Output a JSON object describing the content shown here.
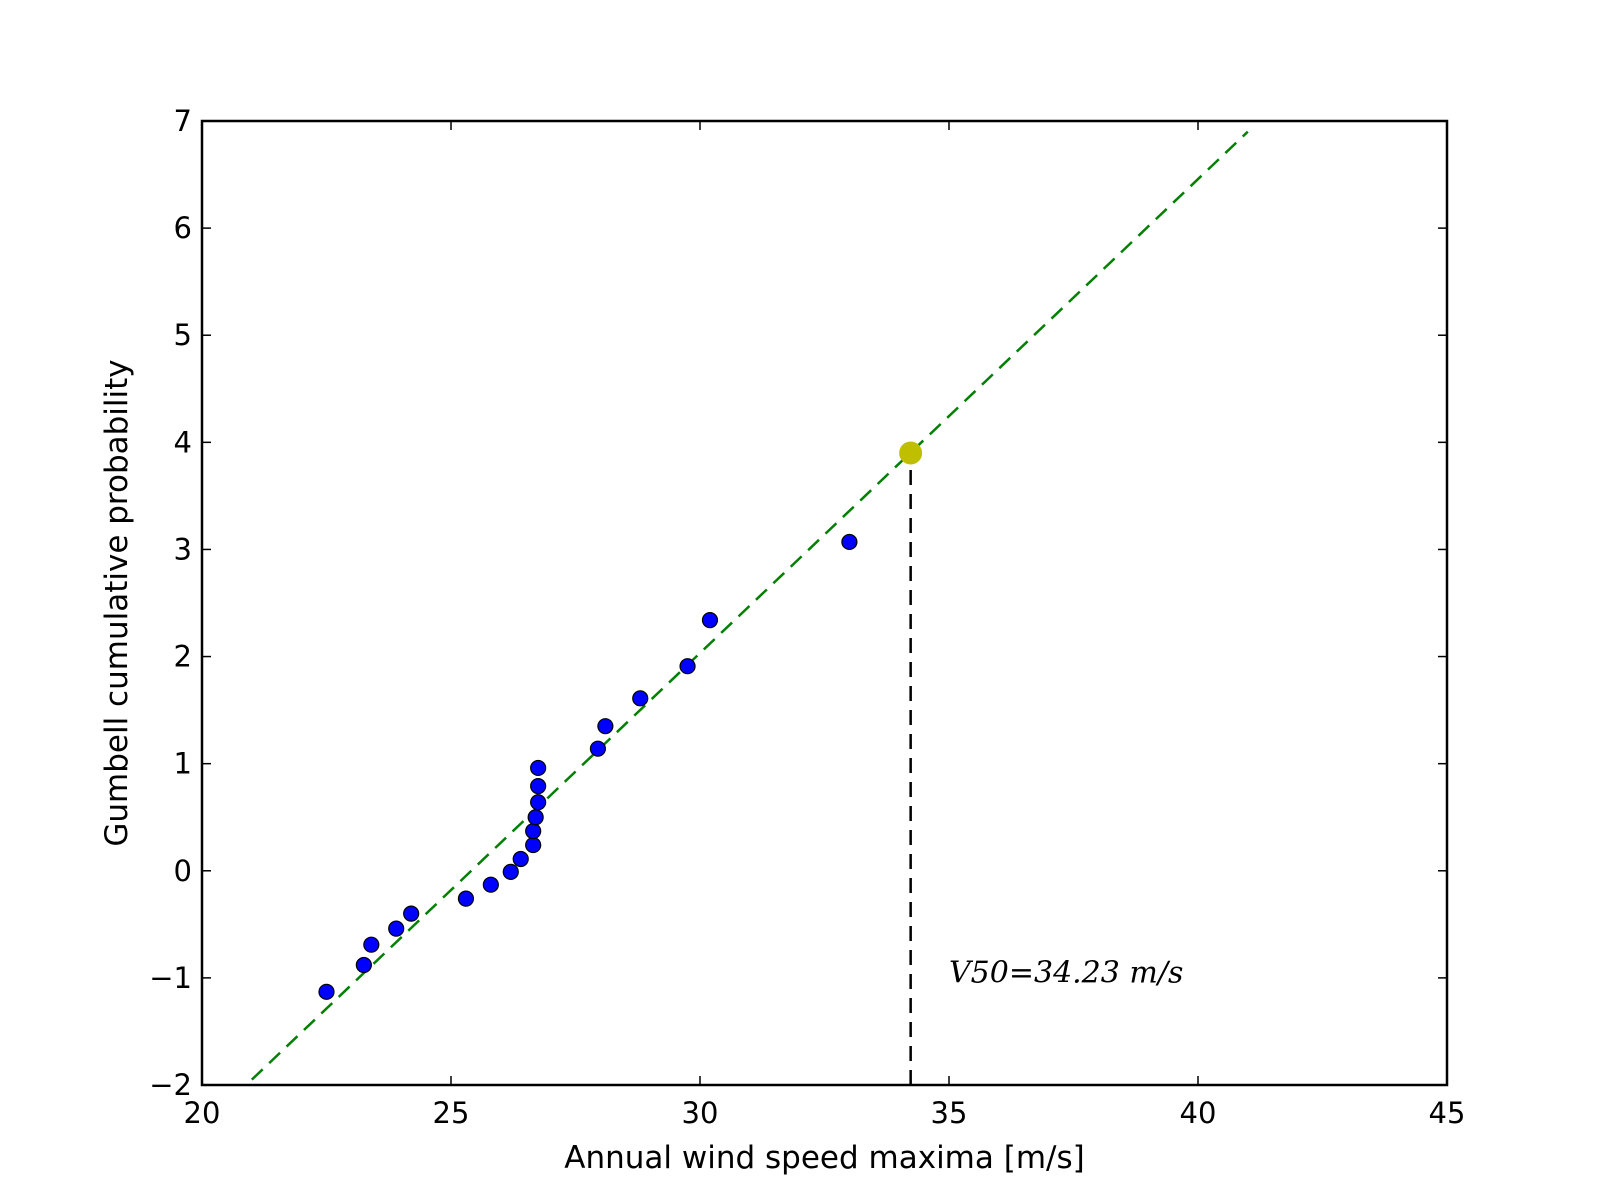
{
  "chart_data": {
    "type": "scatter",
    "title": "",
    "xlabel": "Annual wind speed maxima [m/s]",
    "ylabel": "Gumbell cumulative probability",
    "xlim": [
      20,
      45
    ],
    "ylim": [
      -2,
      7
    ],
    "xticks": [
      20,
      25,
      30,
      35,
      40,
      45
    ],
    "yticks": [
      -2,
      -1,
      0,
      1,
      2,
      3,
      4,
      5,
      6,
      7
    ],
    "xtick_labels": [
      "20",
      "25",
      "30",
      "35",
      "40",
      "45"
    ],
    "ytick_labels": [
      "−2",
      "−1",
      "0",
      "1",
      "2",
      "3",
      "4",
      "5",
      "6",
      "7"
    ],
    "grid": false,
    "legend": "none",
    "series": [
      {
        "kind": "scatter",
        "color": "#0000ff",
        "points": [
          {
            "x": 22.5,
            "y": -1.13
          },
          {
            "x": 23.25,
            "y": -0.88
          },
          {
            "x": 23.4,
            "y": -0.69
          },
          {
            "x": 23.9,
            "y": -0.54
          },
          {
            "x": 24.2,
            "y": -0.4
          },
          {
            "x": 25.3,
            "y": -0.26
          },
          {
            "x": 25.8,
            "y": -0.13
          },
          {
            "x": 26.2,
            "y": -0.01
          },
          {
            "x": 26.4,
            "y": 0.11
          },
          {
            "x": 26.65,
            "y": 0.24
          },
          {
            "x": 26.65,
            "y": 0.37
          },
          {
            "x": 26.7,
            "y": 0.5
          },
          {
            "x": 26.75,
            "y": 0.64
          },
          {
            "x": 26.75,
            "y": 0.79
          },
          {
            "x": 26.75,
            "y": 0.96
          },
          {
            "x": 27.95,
            "y": 1.14
          },
          {
            "x": 28.1,
            "y": 1.35
          },
          {
            "x": 28.8,
            "y": 1.61
          },
          {
            "x": 29.75,
            "y": 1.91
          },
          {
            "x": 30.2,
            "y": 2.34
          },
          {
            "x": 33.0,
            "y": 3.07
          }
        ]
      },
      {
        "kind": "fit-line",
        "style": "dashed",
        "color": "#008000",
        "x": [
          21.0,
          41.0
        ],
        "y": [
          -1.95,
          6.9
        ]
      },
      {
        "kind": "marker",
        "color": "#bfbf00",
        "points": [
          {
            "x": 34.23,
            "y": 3.9
          }
        ]
      },
      {
        "kind": "vline",
        "style": "dashed",
        "color": "#000000",
        "x": 34.23,
        "y": [
          -2,
          3.9
        ]
      }
    ],
    "annotations": [
      {
        "text": "V50=34.23 m/s",
        "x": 35.0,
        "y": -0.95
      }
    ]
  }
}
